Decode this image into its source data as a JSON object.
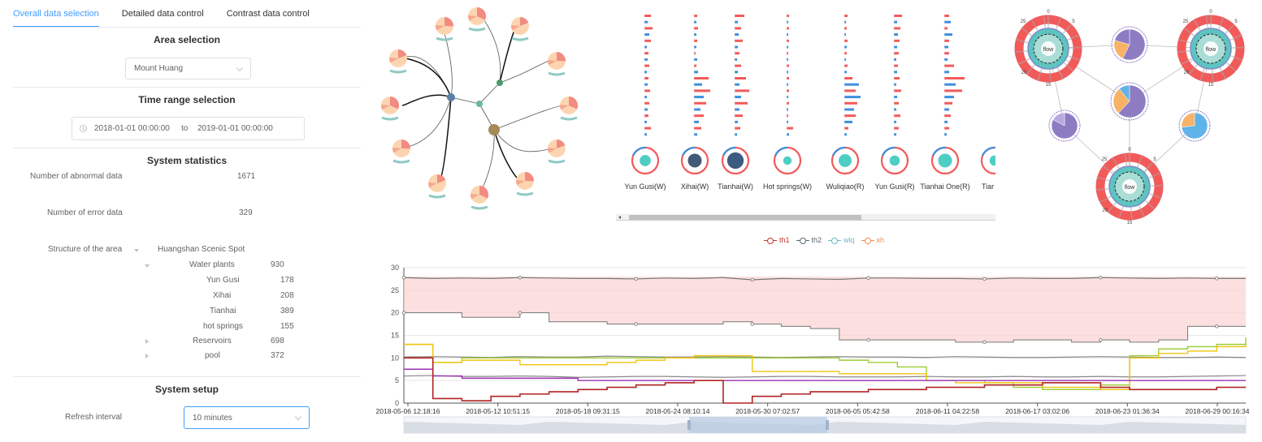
{
  "tabs": [
    {
      "label": "Overall data selection",
      "active": true
    },
    {
      "label": "Detailed data control",
      "active": false
    },
    {
      "label": "Contrast data control",
      "active": false
    }
  ],
  "area": {
    "title": "Area selection",
    "selected": "Mount Huang"
  },
  "time_range": {
    "title": "Time range selection",
    "start": "2018-01-01 00:00:00",
    "separator": "to",
    "end": "2019-01-01 00:00:00"
  },
  "stats": {
    "title": "System statistics",
    "abnormal_label": "Number of abnormal data",
    "abnormal_value": "1671",
    "error_label": "Number of error data",
    "error_value": "329",
    "structure_label": "Structure of the area",
    "tree": {
      "root": "Huangshan Scenic Spot",
      "water_plants": {
        "label": "Water plants",
        "value": "930",
        "children": [
          {
            "label": "Yun Gusi",
            "value": "178"
          },
          {
            "label": "Xihai",
            "value": "208"
          },
          {
            "label": "Tianhai",
            "value": "389"
          },
          {
            "label": "hot springs",
            "value": "155"
          }
        ]
      },
      "reservoirs": {
        "label": "Reservoirs",
        "value": "698"
      },
      "pool": {
        "label": "pool",
        "value": "372"
      }
    }
  },
  "setup": {
    "title": "System setup",
    "refresh_label": "Refresh interval",
    "refresh_value": "10 minutes"
  },
  "stations": [
    {
      "label": "Yun Gusi(W)",
      "inner": "#4ecdc4",
      "size": 0.35
    },
    {
      "label": "Xihai(W)",
      "inner": "#415a77",
      "size": 0.5
    },
    {
      "label": "Tianhai(W)",
      "inner": "#3d5a80",
      "size": 0.65
    },
    {
      "label": "Hot springs(W)",
      "inner": "#4ecdc4",
      "size": 0.2
    },
    {
      "label": "Wuliqiao(R)",
      "inner": "#4ecdc4",
      "size": 0.45
    },
    {
      "label": "Yun Gusi(R)",
      "inner": "#4ecdc4",
      "size": 0.3
    },
    {
      "label": "Tianhai One(R)",
      "inner": "#4ecdc4",
      "size": 0.5
    },
    {
      "label": "Tiar",
      "inner": "#4ecdc4",
      "size": 0.3
    }
  ],
  "flow_nodes": {
    "center_label": "flow",
    "ticks": [
      "0",
      "5",
      "15",
      "20",
      "25"
    ]
  },
  "colors": {
    "accent": "#409eff",
    "red": "#f25a5a",
    "blue": "#3c8fdf",
    "teal": "#4ecdc4",
    "purple": "#8e7cc3",
    "orange": "#f7b267"
  },
  "chart_data": {
    "type": "line",
    "series": [
      {
        "name": "th1",
        "color": "#c0392b"
      },
      {
        "name": "th2",
        "color": "#5b6770"
      },
      {
        "name": "wlq",
        "color": "#67b8c8"
      },
      {
        "name": "xh",
        "color": "#f08a4b"
      }
    ],
    "x_ticks": [
      "2018-05-06 12:18:16",
      "2018-05-12 10:51:15",
      "2018-05-18 09:31:15",
      "2018-05-24 08:10:14",
      "2018-05-30 07:02:57",
      "2018-06-05 05:42:58",
      "2018-06-11 04:22:58",
      "2018-06-17 03:02:06",
      "2018-06-23 01:36:34",
      "2018-06-29 00:16:34"
    ],
    "y_ticks": [
      "0",
      "5",
      "10",
      "15",
      "20",
      "25",
      "30"
    ],
    "ylim": [
      0,
      30
    ],
    "band_upper": [
      28,
      28,
      28,
      28,
      28,
      28,
      28,
      28,
      28,
      28,
      28,
      28,
      28,
      28,
      28,
      28,
      28,
      28,
      28,
      28,
      28,
      28,
      28,
      28,
      28,
      28,
      28,
      28,
      28,
      28
    ],
    "th2_top": [
      27.8,
      27.6,
      27.7,
      27.6,
      27.8,
      27.7,
      27.6,
      27.6,
      27.5,
      27.7,
      27.6,
      27.8,
      27.3,
      27.6,
      27.5,
      27.4,
      27.7,
      27.7,
      27.6,
      27.6,
      27.5,
      27.7,
      27.6,
      27.6,
      27.8,
      27.7,
      27.6,
      27.7,
      27.6,
      27.6
    ],
    "th2_lower": [
      20,
      20,
      19,
      19,
      20,
      18,
      18,
      17.5,
      17.5,
      17.5,
      17.5,
      18,
      17.5,
      17,
      16.5,
      14,
      14,
      14,
      14,
      13.5,
      13.5,
      14,
      14,
      13.5,
      14,
      13.5,
      14,
      17,
      17,
      17
    ],
    "gray_10": [
      10.2,
      10.3,
      10.2,
      10.1,
      10.3,
      10.2,
      10.2,
      10.4,
      10.3,
      10.2,
      10.2,
      10.3,
      10.2,
      10.1,
      10.2,
      10.3,
      10.2,
      10.2,
      10.1,
      10.3,
      10.2,
      10.1,
      10.1,
      10.2,
      10.3,
      10.2,
      10.1,
      10.1,
      10.2,
      10.1
    ],
    "gray_6": [
      6.0,
      6.1,
      5.9,
      5.9,
      6.0,
      5.9,
      5.7,
      5.8,
      5.9,
      5.9,
      5.8,
      5.7,
      5.8,
      5.9,
      5.9,
      5.8,
      5.8,
      5.8,
      5.9,
      5.8,
      5.8,
      5.9,
      5.8,
      5.8,
      5.9,
      5.8,
      5.8,
      5.9,
      6.0,
      6.1
    ],
    "yellow": [
      13,
      9,
      9.5,
      9.5,
      8.5,
      8.5,
      8.5,
      9,
      9.5,
      10,
      10.5,
      10.5,
      7,
      7,
      7,
      6.5,
      6.5,
      6.5,
      5,
      4.5,
      4.5,
      4.5,
      3.5,
      3.5,
      3,
      10,
      11,
      11.5,
      12.5,
      13
    ],
    "green": [
      13,
      9,
      10,
      10,
      10,
      10,
      10,
      10,
      10,
      10,
      10,
      10,
      10,
      10,
      10,
      9.5,
      9,
      8,
      5,
      5,
      4.5,
      3.5,
      3,
      3,
      4,
      10.5,
      12,
      12.5,
      13,
      14.5
    ],
    "purple": [
      7.5,
      6,
      5.5,
      5.5,
      5.5,
      5.5,
      5,
      5,
      5,
      5,
      5,
      5,
      5,
      5,
      5,
      5,
      5,
      5,
      5,
      5,
      5,
      5,
      5,
      5,
      5,
      5,
      5,
      5,
      5,
      5
    ],
    "red": [
      10,
      1,
      0.5,
      1.5,
      2,
      2.5,
      3,
      3.5,
      4,
      4.5,
      5,
      0,
      1.5,
      2,
      2.5,
      2.5,
      3,
      3,
      3.5,
      3.5,
      4,
      4,
      4.5,
      4.5,
      3.5,
      3,
      3,
      3,
      3.5,
      3.5
    ]
  }
}
